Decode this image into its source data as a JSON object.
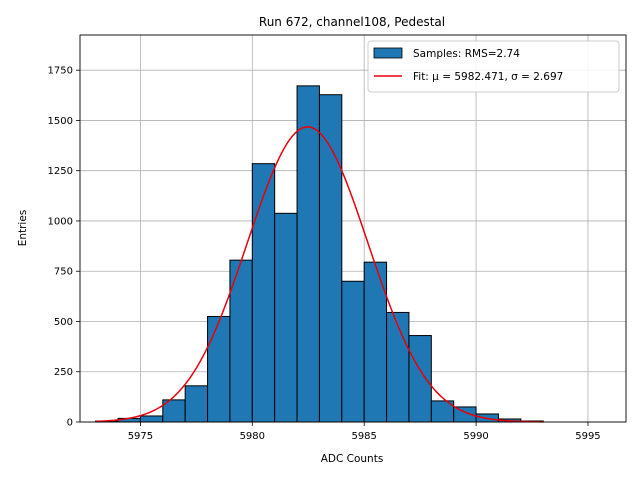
{
  "chart_data": {
    "type": "bar",
    "title": "Run 672, channel108, Pedestal",
    "xlabel": "ADC Counts",
    "ylabel": "Entries",
    "xlim": [
      5972.3,
      5996.7
    ],
    "ylim": [
      0,
      1925
    ],
    "xticks": [
      5975,
      5980,
      5985,
      5990,
      5995
    ],
    "yticks": [
      0,
      250,
      500,
      750,
      1000,
      1250,
      1500,
      1750
    ],
    "grid": true,
    "legend_position": "top-right",
    "bin_edges": [
      5973,
      5974,
      5975,
      5976,
      5977,
      5978,
      5979,
      5980,
      5981,
      5982,
      5983,
      5984,
      5985,
      5986,
      5987,
      5988,
      5989,
      5990,
      5991,
      5992,
      5993
    ],
    "series": [
      {
        "name": "Samples: RMS=2.74",
        "kind": "histogram",
        "color": "#1f77b4",
        "edgecolor": "#000000",
        "values": [
          5,
          18,
          30,
          110,
          180,
          525,
          805,
          1285,
          1038,
          1672,
          1628,
          700,
          795,
          545,
          430,
          105,
          75,
          40,
          15,
          5
        ]
      },
      {
        "name": "Fit: μ = 5982.471, σ = 2.697",
        "kind": "gaussian",
        "color": "#e8000b",
        "mu": 5982.471,
        "sigma": 2.697,
        "amplitude": 1468,
        "x_range": [
          5973,
          5993
        ]
      }
    ]
  }
}
